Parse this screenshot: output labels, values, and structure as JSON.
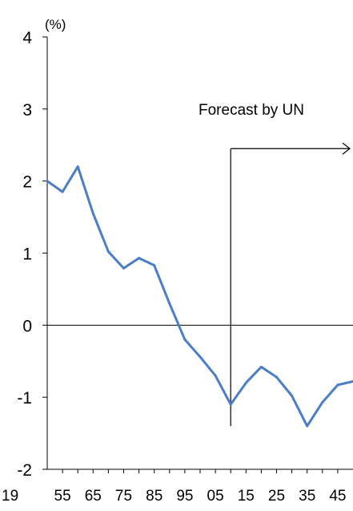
{
  "chart_data": {
    "type": "line",
    "y_unit_label": "(%)",
    "ylim": [
      -2,
      4
    ],
    "y_ticks": [
      "4",
      "3",
      "2",
      "1",
      "0",
      "-1",
      "-2"
    ],
    "y_tick_values": [
      4,
      3,
      2,
      1,
      0,
      -1,
      -2
    ],
    "x_prefix_label": "19",
    "x_tick_labels": [
      "55",
      "65",
      "75",
      "85",
      "95",
      "05",
      "15",
      "25",
      "35",
      "45"
    ],
    "x_tick_years": [
      1955,
      1965,
      1975,
      1985,
      1995,
      2005,
      2015,
      2025,
      2035,
      2045
    ],
    "xlim": [
      1950,
      2050
    ],
    "grid": false,
    "annotation": {
      "text": "Forecast by UN",
      "from_year": 2010,
      "y_top": 2.45,
      "y_bottom": -1.4
    },
    "series": [
      {
        "color": "#4a7ec8",
        "x": [
          1950,
          1955,
          1960,
          1965,
          1970,
          1975,
          1980,
          1985,
          1990,
          1995,
          2000,
          2005,
          2010,
          2015,
          2020,
          2025,
          2030,
          2035,
          2040,
          2045,
          2050
        ],
        "y": [
          2.0,
          1.85,
          2.2,
          1.55,
          1.02,
          0.79,
          0.93,
          0.83,
          0.3,
          -0.2,
          -0.44,
          -0.7,
          -1.1,
          -0.8,
          -0.58,
          -0.72,
          -0.98,
          -1.4,
          -1.07,
          -0.83,
          -0.78
        ]
      }
    ]
  }
}
